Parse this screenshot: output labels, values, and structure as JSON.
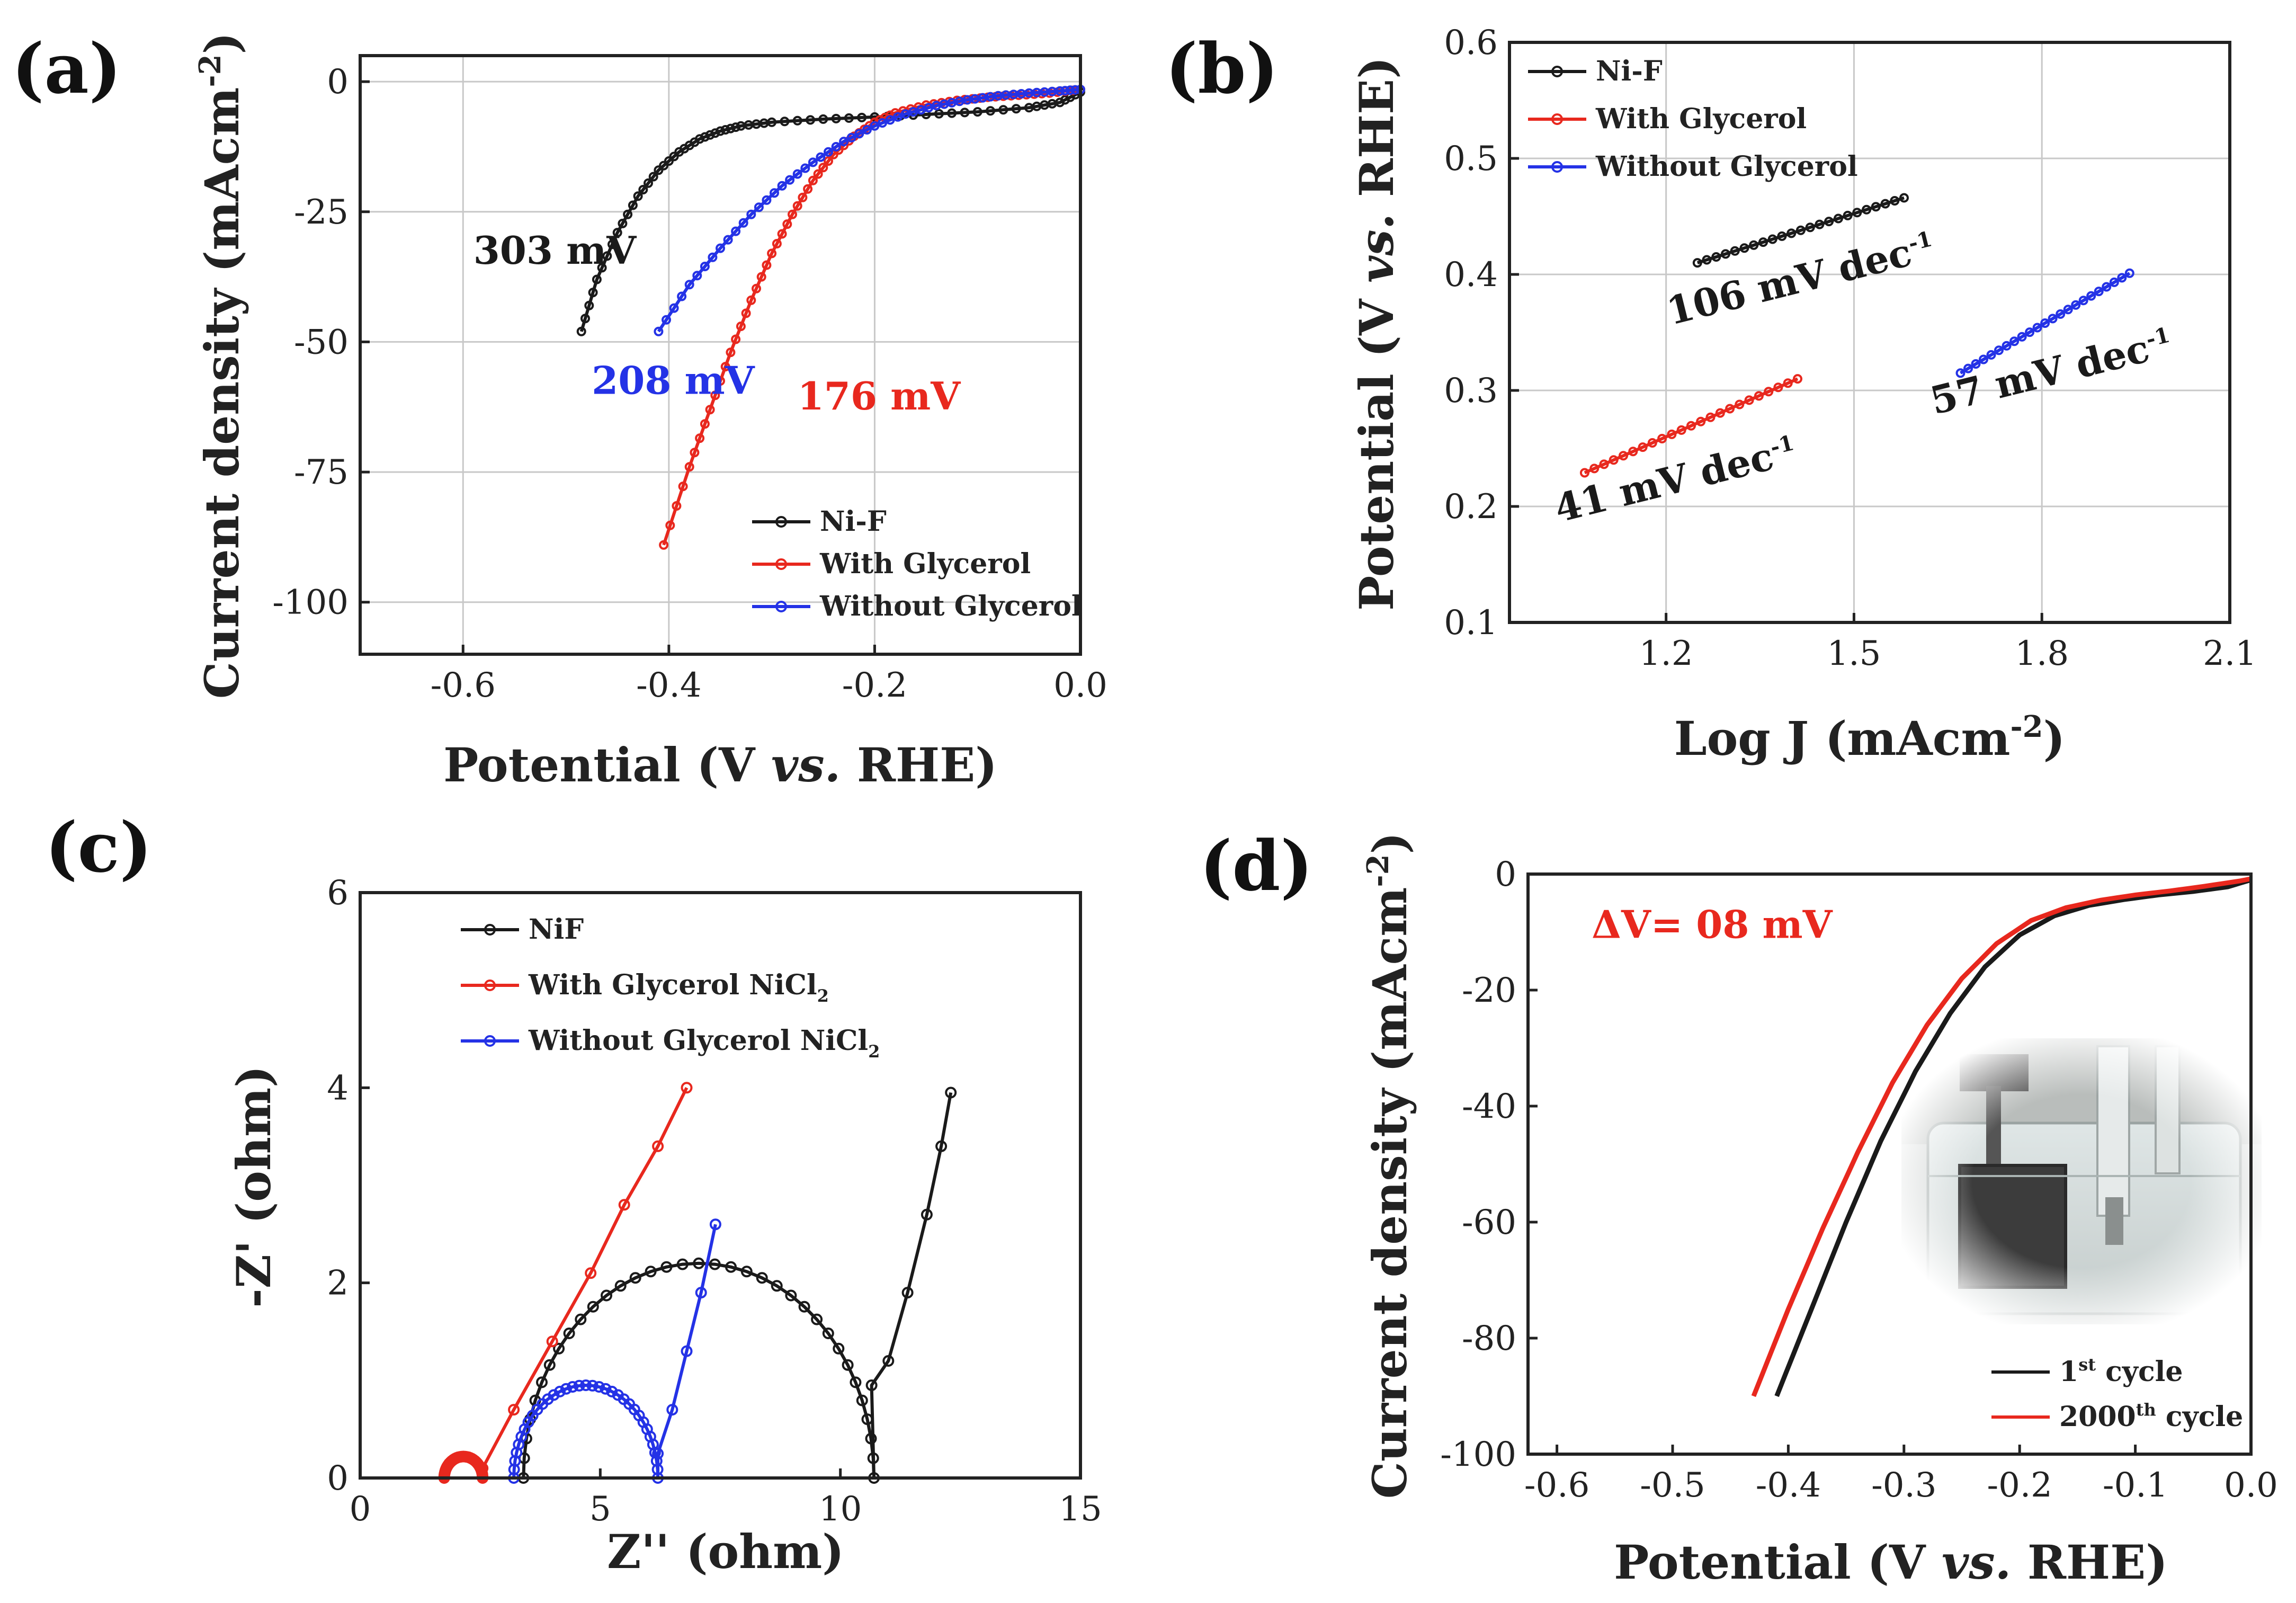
{
  "chart_data": [
    {
      "panel": "(a)",
      "type": "line",
      "xlabel_pre": "Potential (V ",
      "xlabel_it": "vs.",
      "xlabel_post": " RHE)",
      "ylabel": "Current density (mAcm",
      "ylabel_sup": "-2",
      "ylabel_end": ")",
      "xlim": [
        -0.7,
        0.0
      ],
      "ylim": [
        -110,
        5
      ],
      "xticks": [
        -0.6,
        -0.4,
        -0.2,
        0.0
      ],
      "xtick_labels": [
        "-0.6",
        "-0.4",
        "-0.2",
        "0.0"
      ],
      "yticks": [
        0,
        -25,
        -50,
        -75,
        -100
      ],
      "ytick_labels": [
        "0",
        "-25",
        "-50",
        "-75",
        "-100"
      ],
      "grid": true,
      "legend_position": "bottom-right",
      "series": [
        {
          "name": "Ni-F",
          "color": "#1a1a1a",
          "x": [
            -0.485,
            -0.47,
            -0.45,
            -0.43,
            -0.41,
            -0.39,
            -0.37,
            -0.35,
            -0.33,
            -0.3,
            -0.25,
            -0.2,
            -0.15,
            -0.1,
            -0.05,
            -0.02,
            0.0
          ],
          "y": [
            -48,
            -38,
            -29,
            -22,
            -17,
            -13.5,
            -11,
            -9.5,
            -8.5,
            -7.8,
            -7.2,
            -6.8,
            -6.3,
            -5.8,
            -5.0,
            -4.0,
            -2.0
          ]
        },
        {
          "name": "With Glycerol",
          "color": "#e8281e",
          "x": [
            -0.405,
            -0.38,
            -0.36,
            -0.34,
            -0.32,
            -0.3,
            -0.28,
            -0.26,
            -0.24,
            -0.22,
            -0.2,
            -0.18,
            -0.15,
            -0.12,
            -0.09,
            -0.06,
            -0.03,
            0.0
          ],
          "y": [
            -89,
            -74,
            -63,
            -52,
            -42,
            -33,
            -25.5,
            -19,
            -14,
            -10.5,
            -7.8,
            -6,
            -4.5,
            -3.6,
            -3.0,
            -2.6,
            -2.2,
            -1.5
          ]
        },
        {
          "name": "Without Glycerol",
          "color": "#2432e6",
          "x": [
            -0.41,
            -0.38,
            -0.35,
            -0.32,
            -0.29,
            -0.26,
            -0.23,
            -0.2,
            -0.17,
            -0.14,
            -0.11,
            -0.08,
            -0.05,
            -0.02,
            0.0
          ],
          "y": [
            -48,
            -39,
            -32,
            -25.5,
            -20,
            -15.5,
            -11.5,
            -8.5,
            -6.2,
            -4.6,
            -3.5,
            -2.7,
            -2.2,
            -1.8,
            -1.5
          ]
        }
      ],
      "annotations": [
        {
          "text": "303 mV",
          "color": "#1a1a1a",
          "x": -0.59,
          "y": -35
        },
        {
          "text": "208 mV",
          "color": "#2432e6",
          "x": -0.475,
          "y": -60
        },
        {
          "text": "176 mV",
          "color": "#e8281e",
          "x": -0.275,
          "y": -63
        }
      ]
    },
    {
      "panel": "(b)",
      "type": "line",
      "xlabel": "Log J (mAcm",
      "xlabel_sup": "-2",
      "xlabel_end": ")",
      "ylabel_pre": "Potential (V ",
      "ylabel_it": "vs.",
      "ylabel_post": " RHE)",
      "xlim": [
        0.95,
        2.1
      ],
      "ylim": [
        0.1,
        0.6
      ],
      "xticks": [
        1.2,
        1.5,
        1.8,
        2.1
      ],
      "xtick_labels": [
        "1.2",
        "1.5",
        "1.8",
        "2.1"
      ],
      "yticks": [
        0.1,
        0.2,
        0.3,
        0.4,
        0.5,
        0.6
      ],
      "ytick_labels": [
        "0.1",
        "0.2",
        "0.3",
        "0.4",
        "0.5",
        "0.6"
      ],
      "grid": true,
      "legend_position": "top-left",
      "series": [
        {
          "name": "Ni-F",
          "color": "#1a1a1a",
          "x": [
            1.25,
            1.58
          ],
          "y": [
            0.41,
            0.466
          ]
        },
        {
          "name": "With Glycerol",
          "color": "#e8281e",
          "x": [
            1.07,
            1.41
          ],
          "y": [
            0.229,
            0.31
          ]
        },
        {
          "name": "Without Glycerol",
          "color": "#2432e6",
          "x": [
            1.67,
            1.94
          ],
          "y": [
            0.315,
            0.401
          ]
        }
      ],
      "annotations": [
        {
          "text": "106 mV dec",
          "sup": "-1",
          "color": "#1a1a1a",
          "x": 1.42,
          "y": 0.385
        },
        {
          "text": "41 mV dec",
          "sup": "-1",
          "color": "#1a1a1a",
          "x": 1.22,
          "y": 0.212
        },
        {
          "text": "57 mV dec",
          "sup": "-1",
          "color": "#1a1a1a",
          "x": 1.82,
          "y": 0.305
        }
      ]
    },
    {
      "panel": "(c)",
      "type": "scatter",
      "xlabel": "Z'' (ohm)",
      "ylabel": "-Z' (ohm)",
      "xlim": [
        0,
        15
      ],
      "ylim": [
        0,
        6
      ],
      "xticks": [
        0,
        5,
        10,
        15
      ],
      "xtick_labels": [
        "0",
        "5",
        "10",
        "15"
      ],
      "yticks": [
        0,
        2,
        4,
        6
      ],
      "ytick_labels": [
        "0",
        "2",
        "4",
        "6"
      ],
      "grid": false,
      "legend_position": "top-left",
      "series": [
        {
          "name": "NiF",
          "color": "#1a1a1a",
          "kind": "arc",
          "center": 7.05,
          "radius": 3.65,
          "peak": 2.2,
          "tail_x": [
            10.65,
            11.0,
            11.4,
            11.8,
            12.1,
            12.3
          ],
          "tail_y": [
            0.95,
            1.2,
            1.9,
            2.7,
            3.4,
            3.95
          ]
        },
        {
          "name": "With Glycerol NiCl",
          "sub": "2",
          "color": "#e8281e",
          "kind": "arc",
          "center": 2.15,
          "radius": 0.4,
          "peak": 0.22,
          "tail_x": [
            2.55,
            3.2,
            4.0,
            4.8,
            5.5,
            6.2,
            6.8
          ],
          "tail_y": [
            0.1,
            0.7,
            1.4,
            2.1,
            2.8,
            3.4,
            4.0
          ]
        },
        {
          "name": "Without Glycerol NiCl",
          "sub": "2",
          "color": "#2432e6",
          "kind": "arc",
          "center": 4.7,
          "radius": 1.5,
          "peak": 0.95,
          "tail_x": [
            6.2,
            6.5,
            6.8,
            7.1,
            7.4
          ],
          "tail_y": [
            0.25,
            0.7,
            1.3,
            1.9,
            2.6
          ]
        }
      ]
    },
    {
      "panel": "(d)",
      "type": "line",
      "xlabel_pre": "Potential (V ",
      "xlabel_it": "vs.",
      "xlabel_post": " RHE)",
      "ylabel": "Current density (mAcm",
      "ylabel_sup": "-2",
      "ylabel_end": ")",
      "xlim": [
        -0.625,
        0.0
      ],
      "ylim": [
        -100,
        0
      ],
      "xticks": [
        -0.6,
        -0.5,
        -0.4,
        -0.3,
        -0.2,
        -0.1,
        0.0
      ],
      "xtick_labels": [
        "-0.6",
        "-0.5",
        "-0.4",
        "-0.3",
        "-0.2",
        "-0.1",
        "0.0"
      ],
      "yticks": [
        0,
        -20,
        -40,
        -60,
        -80,
        -100
      ],
      "ytick_labels": [
        "0",
        "-20",
        "-40",
        "-60",
        "-80",
        "-100"
      ],
      "grid": false,
      "legend_position": "bottom-right",
      "series": [
        {
          "name": "1",
          "sup": "st",
          "name_end": " cycle",
          "color": "#1a1a1a",
          "x": [
            -0.41,
            -0.38,
            -0.35,
            -0.32,
            -0.29,
            -0.26,
            -0.23,
            -0.2,
            -0.17,
            -0.14,
            -0.11,
            -0.08,
            -0.05,
            -0.02,
            0.0
          ],
          "y": [
            -90,
            -75,
            -60,
            -46,
            -34,
            -24,
            -16,
            -10.5,
            -7.2,
            -5.4,
            -4.4,
            -3.6,
            -3.0,
            -2.2,
            -1.0
          ]
        },
        {
          "name": "2000",
          "sup": "th",
          "name_end": " cycle",
          "color": "#e8281e",
          "x": [
            -0.43,
            -0.4,
            -0.37,
            -0.34,
            -0.31,
            -0.28,
            -0.25,
            -0.22,
            -0.19,
            -0.16,
            -0.13,
            -0.1,
            -0.07,
            -0.04,
            -0.01,
            0.0
          ],
          "y": [
            -90,
            -75,
            -61,
            -48,
            -36,
            -26,
            -18,
            -12,
            -8,
            -5.8,
            -4.5,
            -3.6,
            -2.9,
            -2.1,
            -1.2,
            -0.8
          ]
        }
      ],
      "annotations": [
        {
          "text": "ΔV= 08 mV",
          "color": "#e8281e",
          "x": -0.57,
          "y": -11
        }
      ],
      "inset": "photo of electrolysis cell"
    }
  ]
}
